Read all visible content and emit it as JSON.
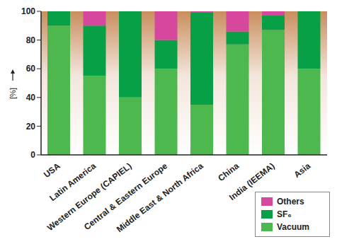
{
  "chart_data": {
    "type": "bar",
    "stacked": true,
    "y_label": "[%]",
    "categories": [
      "USA",
      "Latin America",
      "Western Europe (CAPIEL)",
      "Central & Eastern Europe",
      "Middle East & North Africa",
      "China",
      "India (IEEMA)",
      "Asia"
    ],
    "series": [
      {
        "name": "Vacuum",
        "color": "#4db84d",
        "values": [
          90,
          55,
          40,
          60,
          35,
          77,
          87,
          60
        ]
      },
      {
        "name": "SF₆",
        "color": "#08a046",
        "values": [
          10,
          35,
          60,
          20,
          64,
          9,
          10,
          40
        ]
      },
      {
        "name": "Others",
        "color": "#d6479e",
        "values": [
          0,
          10,
          0,
          20,
          1,
          14,
          3,
          0
        ]
      }
    ],
    "ylim": [
      0,
      100
    ],
    "yticks": [
      0,
      20,
      40,
      60,
      80,
      100
    ],
    "grid": false,
    "legend": "bottom-right"
  }
}
